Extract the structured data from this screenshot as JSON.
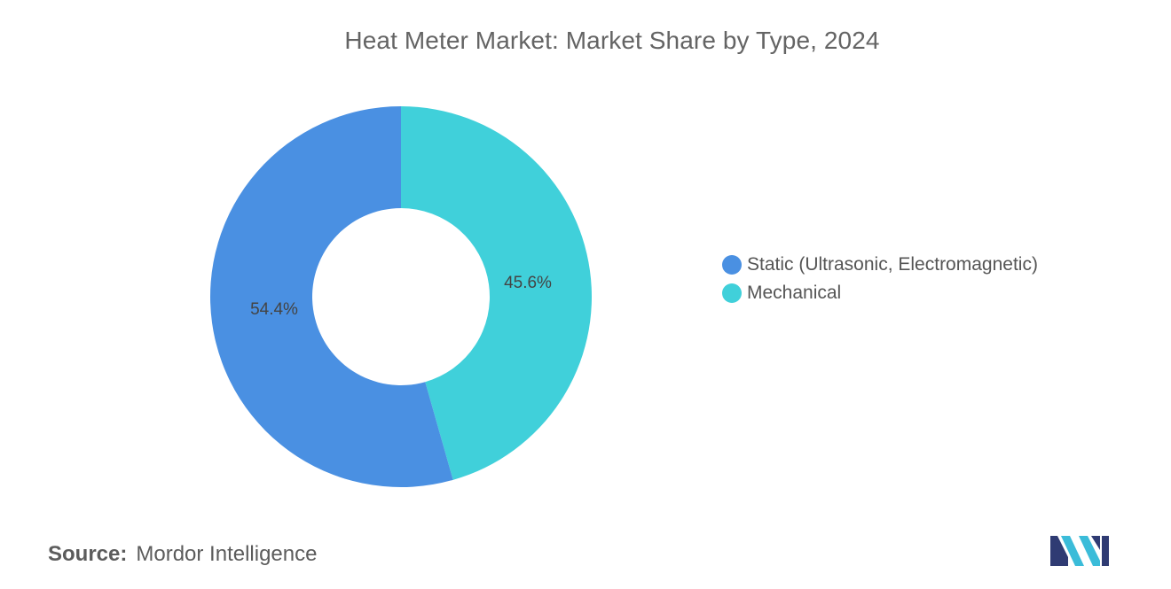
{
  "chart_data": {
    "type": "pie",
    "variant": "donut",
    "title": "Heat Meter Market: Market Share by Type, 2024",
    "series": [
      {
        "name": "Static (Ultrasonic, Electromagnetic)",
        "value": 54.4,
        "label": "54.4%",
        "color": "#4a90e2"
      },
      {
        "name": "Mechanical",
        "value": 45.6,
        "label": "45.6%",
        "color": "#40d0da"
      }
    ],
    "legend_position": "right",
    "start": "top, clockwise: Mechanical then Static"
  },
  "source": {
    "label": "Source:",
    "value": "Mordor Intelligence"
  },
  "logo": {
    "name": "mordor-intelligence-logo",
    "colors": [
      "#2f3b73",
      "#3bbcd9"
    ]
  }
}
